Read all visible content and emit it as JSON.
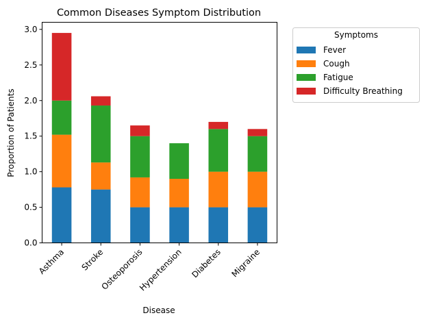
{
  "chart_data": {
    "type": "bar",
    "stacked": true,
    "title": "Common Diseases Symptom Distribution",
    "xlabel": "Disease",
    "ylabel": "Proportion of Patients",
    "categories": [
      "Asthma",
      "Stroke",
      "Osteoporosis",
      "Hypertension",
      "Diabetes",
      "Migraine"
    ],
    "ylim": [
      0,
      3.1
    ],
    "yticks": [
      0.0,
      0.5,
      1.0,
      1.5,
      2.0,
      2.5,
      3.0
    ],
    "ytick_labels": [
      "0.0",
      "0.5",
      "1.0",
      "1.5",
      "2.0",
      "2.5",
      "3.0"
    ],
    "grid": false,
    "legend": {
      "title": "Symptoms",
      "placement": "outside upper right"
    },
    "series": [
      {
        "name": "Fever",
        "color": "#1f77b4",
        "values": [
          0.78,
          0.75,
          0.5,
          0.5,
          0.5,
          0.5
        ]
      },
      {
        "name": "Cough",
        "color": "#ff7f0e",
        "values": [
          0.74,
          0.38,
          0.42,
          0.4,
          0.5,
          0.5
        ]
      },
      {
        "name": "Fatigue",
        "color": "#2ca02c",
        "values": [
          0.48,
          0.8,
          0.58,
          0.5,
          0.6,
          0.5
        ]
      },
      {
        "name": "Difficulty Breathing",
        "color": "#d62728",
        "values": [
          0.95,
          0.13,
          0.15,
          0.0,
          0.1,
          0.1
        ]
      }
    ]
  }
}
